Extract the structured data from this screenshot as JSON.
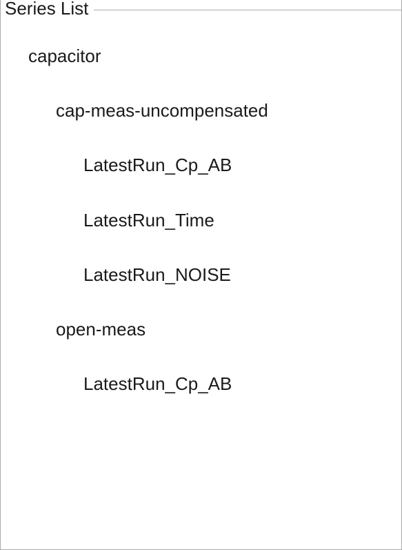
{
  "panel": {
    "title": "Series List",
    "border_color": "#a8a8a8",
    "background_color": "#ffffff",
    "text_color": "#1a1a1a",
    "font_size_pt": 20
  },
  "tree": {
    "root": {
      "label": "capacitor",
      "children": [
        {
          "label": "cap-meas-uncompensated",
          "children": [
            {
              "label": "LatestRun_Cp_AB"
            },
            {
              "label": "LatestRun_Time"
            },
            {
              "label": "LatestRun_NOISE"
            }
          ]
        },
        {
          "label": "open-meas",
          "children": [
            {
              "label": "LatestRun_Cp_AB"
            }
          ]
        }
      ]
    }
  }
}
